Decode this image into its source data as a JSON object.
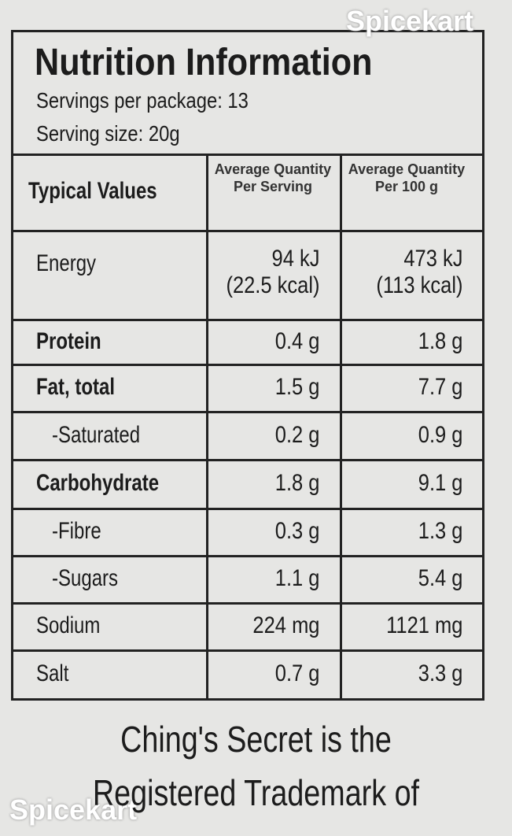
{
  "watermark": [
    "Spicekart",
    "Spicekart"
  ],
  "header": {
    "title": "Nutrition Information",
    "servings_per_package": "Servings per package: 13",
    "serving_size": "Serving size: 20g"
  },
  "table": {
    "columns": [
      "Typical Values",
      "Average Quantity Per Serving",
      "Average Quantity Per 100 g"
    ],
    "rows": [
      {
        "label": "Energy",
        "bold": false,
        "indent": false,
        "per_serving": [
          "94 kJ",
          "(22.5 kcal)"
        ],
        "per_100g": [
          "473 kJ",
          "(113 kcal)"
        ]
      },
      {
        "label": "Protein",
        "bold": true,
        "indent": false,
        "per_serving": [
          "0.4 g"
        ],
        "per_100g": [
          "1.8 g"
        ]
      },
      {
        "label": "Fat, total",
        "bold": true,
        "indent": false,
        "per_serving": [
          "1.5 g"
        ],
        "per_100g": [
          "7.7 g"
        ]
      },
      {
        "label": "-Saturated",
        "bold": false,
        "indent": true,
        "per_serving": [
          "0.2 g"
        ],
        "per_100g": [
          "0.9 g"
        ]
      },
      {
        "label": "Carbohydrate",
        "bold": true,
        "indent": false,
        "per_serving": [
          "1.8 g"
        ],
        "per_100g": [
          "9.1 g"
        ]
      },
      {
        "label": "-Fibre",
        "bold": false,
        "indent": true,
        "per_serving": [
          "0.3 g"
        ],
        "per_100g": [
          "1.3 g"
        ]
      },
      {
        "label": "-Sugars",
        "bold": false,
        "indent": true,
        "per_serving": [
          "1.1 g"
        ],
        "per_100g": [
          "5.4 g"
        ]
      },
      {
        "label": "Sodium",
        "bold": false,
        "indent": false,
        "per_serving": [
          "224 mg"
        ],
        "per_100g": [
          "1121 mg"
        ]
      },
      {
        "label": "Salt",
        "bold": false,
        "indent": false,
        "per_serving": [
          "0.7 g"
        ],
        "per_100g": [
          "3.3 g"
        ]
      }
    ]
  },
  "footer": [
    "Ching's Secret is the",
    "Registered Trademark of"
  ]
}
